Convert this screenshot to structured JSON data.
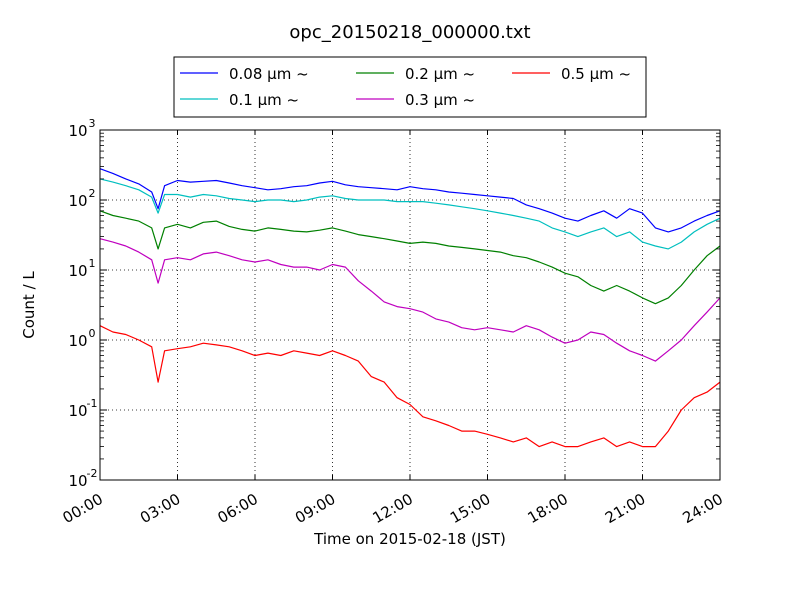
{
  "chart_data": {
    "type": "line",
    "title": "opc_20150218_000000.txt",
    "xlabel": "Time on 2015-02-18 (JST)",
    "ylabel": "Count / L",
    "yscale": "log",
    "ylim": [
      0.01,
      1000
    ],
    "xlim": [
      "2015-02-18 00:00",
      "2015-02-19 00:00"
    ],
    "grid": true,
    "legend_position": "top",
    "x_tick_labels": [
      "00:00",
      "03:00",
      "06:00",
      "09:00",
      "12:00",
      "15:00",
      "18:00",
      "21:00",
      "24:00"
    ],
    "y_tick_labels": [
      {
        "base": "10",
        "exp": "-2"
      },
      {
        "base": "10",
        "exp": "-1"
      },
      {
        "base": "10",
        "exp": "0"
      },
      {
        "base": "10",
        "exp": "1"
      },
      {
        "base": "10",
        "exp": "2"
      },
      {
        "base": "10",
        "exp": "3"
      }
    ],
    "x_hours": [
      0,
      0.5,
      1,
      1.5,
      2,
      2.25,
      2.5,
      3,
      3.5,
      4,
      4.5,
      5,
      5.5,
      6,
      6.5,
      7,
      7.5,
      8,
      8.5,
      9,
      9.5,
      10,
      10.5,
      11,
      11.5,
      12,
      12.5,
      13,
      13.5,
      14,
      14.5,
      15,
      15.5,
      16,
      16.5,
      17,
      17.5,
      18,
      18.5,
      19,
      19.5,
      20,
      20.5,
      21,
      21.5,
      22,
      22.5,
      23,
      23.5,
      24
    ],
    "series": [
      {
        "name": "0.08 μm ~",
        "color": "#0000ff",
        "values": [
          280,
          240,
          200,
          170,
          130,
          75,
          160,
          190,
          180,
          185,
          190,
          175,
          160,
          150,
          140,
          145,
          155,
          160,
          175,
          185,
          165,
          155,
          150,
          145,
          140,
          155,
          145,
          140,
          130,
          125,
          120,
          115,
          110,
          105,
          85,
          75,
          65,
          55,
          50,
          60,
          70,
          55,
          75,
          65,
          40,
          35,
          40,
          50,
          60,
          70
        ]
      },
      {
        "name": "0.1 μm ~",
        "color": "#00bfbf",
        "values": [
          200,
          180,
          160,
          140,
          110,
          65,
          120,
          120,
          110,
          120,
          115,
          105,
          100,
          95,
          100,
          100,
          95,
          100,
          110,
          115,
          105,
          100,
          100,
          100,
          95,
          95,
          95,
          90,
          85,
          80,
          75,
          70,
          65,
          60,
          55,
          50,
          40,
          35,
          30,
          35,
          40,
          30,
          35,
          25,
          22,
          20,
          25,
          35,
          45,
          55
        ]
      },
      {
        "name": "0.2 μm ~",
        "color": "#008000",
        "values": [
          70,
          60,
          55,
          50,
          40,
          20,
          40,
          45,
          40,
          48,
          50,
          42,
          38,
          36,
          40,
          38,
          36,
          35,
          37,
          40,
          36,
          32,
          30,
          28,
          26,
          24,
          25,
          24,
          22,
          21,
          20,
          19,
          18,
          16,
          15,
          13,
          11,
          9,
          8,
          6,
          5,
          6,
          5,
          4,
          3.3,
          4,
          6,
          10,
          16,
          22
        ]
      },
      {
        "name": "0.3 μm ~",
        "color": "#bf00bf",
        "values": [
          28,
          25,
          22,
          18,
          14,
          6.5,
          14,
          15,
          14,
          17,
          18,
          16,
          14,
          13,
          14,
          12,
          11,
          11,
          10,
          12,
          11,
          7,
          5,
          3.5,
          3,
          2.8,
          2.5,
          2,
          1.8,
          1.5,
          1.4,
          1.5,
          1.4,
          1.3,
          1.6,
          1.4,
          1.1,
          0.9,
          1.0,
          1.3,
          1.2,
          0.9,
          0.7,
          0.6,
          0.5,
          0.7,
          1.0,
          1.6,
          2.5,
          4
        ]
      },
      {
        "name": "0.5 μm ~",
        "color": "#ff0000",
        "values": [
          1.6,
          1.3,
          1.2,
          1.0,
          0.8,
          0.25,
          0.7,
          0.75,
          0.8,
          0.9,
          0.85,
          0.8,
          0.7,
          0.6,
          0.65,
          0.6,
          0.7,
          0.65,
          0.6,
          0.7,
          0.6,
          0.5,
          0.3,
          0.25,
          0.15,
          0.12,
          0.08,
          0.07,
          0.06,
          0.05,
          0.05,
          0.045,
          0.04,
          0.035,
          0.04,
          0.03,
          0.035,
          0.03,
          0.03,
          0.035,
          0.04,
          0.03,
          0.035,
          0.03,
          0.03,
          0.05,
          0.1,
          0.15,
          0.18,
          0.25
        ]
      }
    ]
  }
}
